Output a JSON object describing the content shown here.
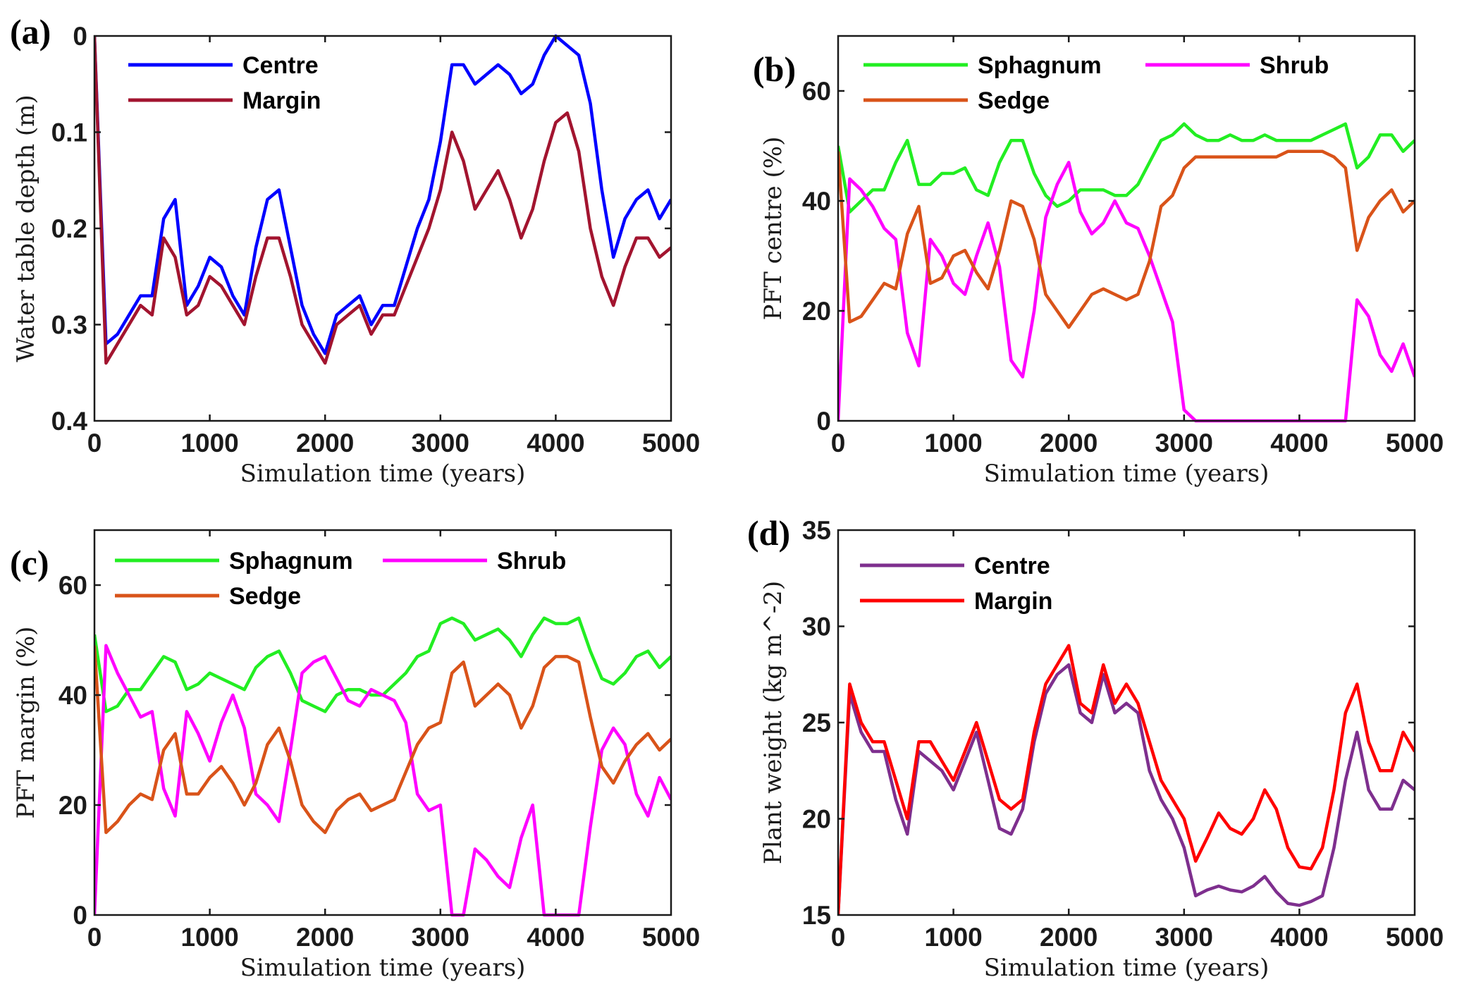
{
  "chart_data": [
    {
      "id": "a",
      "panel_label": "(a)",
      "type": "line",
      "xlabel": "Simulation time (years)",
      "ylabel": "Water table depth (m)",
      "xlim": [
        0,
        5000
      ],
      "ylim": [
        0,
        0.4
      ],
      "y_reversed": true,
      "xticks": [
        0,
        1000,
        2000,
        3000,
        4000,
        5000
      ],
      "xtick_labels": [
        "0",
        "1000",
        "2000",
        "3000",
        "4000",
        "5000"
      ],
      "yticks": [
        0,
        0.1,
        0.2,
        0.3,
        0.4
      ],
      "ytick_labels": [
        "0",
        "0.1",
        "0.2",
        "0.3",
        "0.4"
      ],
      "legend": {
        "placement": "top-left",
        "columns": 1
      },
      "x": [
        0,
        100,
        200,
        300,
        400,
        500,
        600,
        700,
        800,
        900,
        1000,
        1100,
        1200,
        1300,
        1400,
        1500,
        1600,
        1700,
        1800,
        1900,
        2000,
        2100,
        2200,
        2300,
        2400,
        2500,
        2600,
        2700,
        2800,
        2900,
        3000,
        3100,
        3200,
        3300,
        3400,
        3500,
        3600,
        3700,
        3800,
        3900,
        4000,
        4100,
        4200,
        4300,
        4400,
        4500,
        4600,
        4700,
        4800,
        4900,
        5000
      ],
      "series": [
        {
          "name": "Centre",
          "color": "#0000ff",
          "values": [
            0,
            0.32,
            0.31,
            0.29,
            0.27,
            0.27,
            0.19,
            0.17,
            0.28,
            0.26,
            0.23,
            0.24,
            0.27,
            0.29,
            0.22,
            0.17,
            0.16,
            0.22,
            0.28,
            0.31,
            0.33,
            0.29,
            0.28,
            0.27,
            0.3,
            0.28,
            0.28,
            0.24,
            0.2,
            0.17,
            0.11,
            0.03,
            0.03,
            0.05,
            0.04,
            0.03,
            0.04,
            0.06,
            0.05,
            0.02,
            0.0,
            0.01,
            0.02,
            0.07,
            0.16,
            0.23,
            0.19,
            0.17,
            0.16,
            0.19,
            0.17
          ]
        },
        {
          "name": "Margin",
          "color": "#a2142f",
          "values": [
            0,
            0.34,
            0.32,
            0.3,
            0.28,
            0.29,
            0.21,
            0.23,
            0.29,
            0.28,
            0.25,
            0.26,
            0.28,
            0.3,
            0.25,
            0.21,
            0.21,
            0.25,
            0.3,
            0.32,
            0.34,
            0.3,
            0.29,
            0.28,
            0.31,
            0.29,
            0.29,
            0.26,
            0.23,
            0.2,
            0.16,
            0.1,
            0.13,
            0.18,
            0.16,
            0.14,
            0.17,
            0.21,
            0.18,
            0.13,
            0.09,
            0.08,
            0.12,
            0.2,
            0.25,
            0.28,
            0.24,
            0.21,
            0.21,
            0.23,
            0.22
          ]
        }
      ]
    },
    {
      "id": "b",
      "panel_label": "(b)",
      "type": "line",
      "xlabel": "Simulation time (years)",
      "ylabel": "PFT centre (%)",
      "xlim": [
        0,
        5000
      ],
      "ylim": [
        0,
        70
      ],
      "xticks": [
        0,
        1000,
        2000,
        3000,
        4000,
        5000
      ],
      "xtick_labels": [
        "0",
        "1000",
        "2000",
        "3000",
        "4000",
        "5000"
      ],
      "yticks": [
        0,
        20,
        40,
        60
      ],
      "ytick_labels": [
        "0",
        "20",
        "40",
        "60"
      ],
      "legend": {
        "placement": "top",
        "columns": 2
      },
      "x": [
        0,
        100,
        200,
        300,
        400,
        500,
        600,
        700,
        800,
        900,
        1000,
        1100,
        1200,
        1300,
        1400,
        1500,
        1600,
        1700,
        1800,
        1900,
        2000,
        2100,
        2200,
        2300,
        2400,
        2500,
        2600,
        2700,
        2800,
        2900,
        3000,
        3100,
        3200,
        3300,
        3400,
        3500,
        3600,
        3700,
        3800,
        3900,
        4000,
        4100,
        4200,
        4300,
        4400,
        4500,
        4600,
        4700,
        4800,
        4900,
        5000
      ],
      "series": [
        {
          "name": "Sphagnum",
          "color": "#22ee22",
          "values": [
            50,
            38,
            40,
            42,
            42,
            47,
            51,
            43,
            43,
            45,
            45,
            46,
            42,
            41,
            47,
            51,
            51,
            45,
            41,
            39,
            40,
            42,
            42,
            42,
            41,
            41,
            43,
            47,
            51,
            52,
            54,
            52,
            51,
            51,
            52,
            51,
            51,
            52,
            51,
            51,
            51,
            51,
            52,
            53,
            54,
            46,
            48,
            52,
            52,
            49,
            51
          ]
        },
        {
          "name": "Shrub",
          "color": "#ff00ff",
          "values": [
            0,
            44,
            42,
            39,
            35,
            33,
            16,
            10,
            33,
            30,
            25,
            23,
            30,
            36,
            28,
            11,
            8,
            20,
            37,
            43,
            47,
            38,
            34,
            36,
            40,
            36,
            35,
            30,
            24,
            18,
            2,
            0,
            0,
            0,
            0,
            0,
            0,
            0,
            0,
            0,
            0,
            0,
            0,
            0,
            0,
            22,
            19,
            12,
            9,
            14,
            8
          ]
        },
        {
          "name": "Sedge",
          "color": "#d95319",
          "values": [
            49,
            18,
            19,
            22,
            25,
            24,
            34,
            39,
            25,
            26,
            30,
            31,
            27,
            24,
            31,
            40,
            39,
            33,
            23,
            20,
            17,
            20,
            23,
            24,
            23,
            22,
            23,
            29,
            39,
            41,
            46,
            48,
            48,
            48,
            48,
            48,
            48,
            48,
            48,
            49,
            49,
            49,
            49,
            48,
            46,
            31,
            37,
            40,
            42,
            38,
            40
          ]
        }
      ]
    },
    {
      "id": "c",
      "panel_label": "(c)",
      "type": "line",
      "xlabel": "Simulation time (years)",
      "ylabel": "PFT margin (%)",
      "xlim": [
        0,
        5000
      ],
      "ylim": [
        0,
        70
      ],
      "xticks": [
        0,
        1000,
        2000,
        3000,
        4000,
        5000
      ],
      "xtick_labels": [
        "0",
        "1000",
        "2000",
        "3000",
        "4000",
        "5000"
      ],
      "yticks": [
        0,
        20,
        40,
        60
      ],
      "ytick_labels": [
        "0",
        "20",
        "40",
        "60"
      ],
      "legend": {
        "placement": "top",
        "columns": 2
      },
      "x": [
        0,
        100,
        200,
        300,
        400,
        500,
        600,
        700,
        800,
        900,
        1000,
        1100,
        1200,
        1300,
        1400,
        1500,
        1600,
        1700,
        1800,
        1900,
        2000,
        2100,
        2200,
        2300,
        2400,
        2500,
        2600,
        2700,
        2800,
        2900,
        3000,
        3100,
        3200,
        3300,
        3400,
        3500,
        3600,
        3700,
        3800,
        3900,
        4000,
        4100,
        4200,
        4300,
        4400,
        4500,
        4600,
        4700,
        4800,
        4900,
        5000
      ],
      "series": [
        {
          "name": "Sphagnum",
          "color": "#22ee22",
          "values": [
            51,
            37,
            38,
            41,
            41,
            44,
            47,
            46,
            41,
            42,
            44,
            43,
            42,
            41,
            45,
            47,
            48,
            44,
            39,
            38,
            37,
            40,
            41,
            41,
            40,
            40,
            42,
            44,
            47,
            48,
            53,
            54,
            53,
            50,
            51,
            52,
            50,
            47,
            51,
            54,
            53,
            53,
            54,
            48,
            43,
            42,
            44,
            47,
            48,
            45,
            47
          ]
        },
        {
          "name": "Shrub",
          "color": "#ff00ff",
          "values": [
            0,
            49,
            44,
            40,
            36,
            37,
            23,
            18,
            37,
            33,
            28,
            35,
            40,
            34,
            22,
            20,
            17,
            30,
            44,
            46,
            47,
            43,
            39,
            38,
            41,
            40,
            39,
            35,
            22,
            19,
            20,
            0,
            0,
            12,
            10,
            7,
            5,
            14,
            20,
            0,
            0,
            0,
            0,
            16,
            30,
            34,
            31,
            22,
            18,
            25,
            21
          ]
        },
        {
          "name": "Sedge",
          "color": "#d95319",
          "values": [
            49,
            15,
            17,
            20,
            22,
            21,
            30,
            33,
            22,
            22,
            25,
            27,
            24,
            20,
            24,
            31,
            34,
            28,
            20,
            17,
            15,
            19,
            21,
            22,
            19,
            20,
            21,
            26,
            31,
            34,
            35,
            44,
            46,
            38,
            40,
            42,
            40,
            34,
            38,
            45,
            47,
            47,
            46,
            36,
            27,
            24,
            28,
            31,
            33,
            30,
            32
          ]
        }
      ]
    },
    {
      "id": "d",
      "panel_label": "(d)",
      "type": "line",
      "xlabel": "Simulation time (years)",
      "ylabel": "Plant weight (kg m^-2)",
      "xlim": [
        0,
        5000
      ],
      "ylim": [
        15,
        35
      ],
      "xticks": [
        0,
        1000,
        2000,
        3000,
        4000,
        5000
      ],
      "xtick_labels": [
        "0",
        "1000",
        "2000",
        "3000",
        "4000",
        "5000"
      ],
      "yticks": [
        15,
        20,
        25,
        30,
        35
      ],
      "ytick_labels": [
        "15",
        "20",
        "25",
        "30",
        "35"
      ],
      "legend": {
        "placement": "top-left",
        "columns": 1
      },
      "x": [
        0,
        100,
        200,
        300,
        400,
        500,
        600,
        700,
        800,
        900,
        1000,
        1100,
        1200,
        1300,
        1400,
        1500,
        1600,
        1700,
        1800,
        1900,
        2000,
        2100,
        2200,
        2300,
        2400,
        2500,
        2600,
        2700,
        2800,
        2900,
        3000,
        3100,
        3200,
        3300,
        3400,
        3500,
        3600,
        3700,
        3800,
        3900,
        4000,
        4100,
        4200,
        4300,
        4400,
        4500,
        4600,
        4700,
        4800,
        4900,
        5000
      ],
      "series": [
        {
          "name": "Centre",
          "color": "#7e2f8e",
          "values": [
            15,
            26.5,
            24.5,
            23.5,
            23.5,
            21,
            19.2,
            23.5,
            23,
            22.5,
            21.5,
            23,
            24.5,
            22,
            19.5,
            19.2,
            20.5,
            24,
            26.5,
            27.5,
            28,
            25.5,
            25,
            27.5,
            25.5,
            26,
            25.5,
            22.5,
            21,
            20,
            18.5,
            16,
            16.3,
            16.5,
            16.3,
            16.2,
            16.5,
            17,
            16.2,
            15.6,
            15.5,
            15.7,
            16,
            18.5,
            22,
            24.5,
            21.5,
            20.5,
            20.5,
            22,
            21.5
          ]
        },
        {
          "name": "Margin",
          "color": "#ff0000",
          "values": [
            15,
            27,
            25,
            24,
            24,
            22,
            20,
            24,
            24,
            23,
            22,
            23.5,
            25,
            23,
            21,
            20.5,
            21,
            24.5,
            27,
            28,
            29,
            26,
            25.5,
            28,
            26,
            27,
            26,
            24,
            22,
            21,
            20,
            17.8,
            19,
            20.3,
            19.5,
            19.2,
            20,
            21.5,
            20.5,
            18.5,
            17.5,
            17.4,
            18.5,
            21.5,
            25.5,
            27,
            24,
            22.5,
            22.5,
            24.5,
            23.5
          ]
        }
      ]
    }
  ]
}
